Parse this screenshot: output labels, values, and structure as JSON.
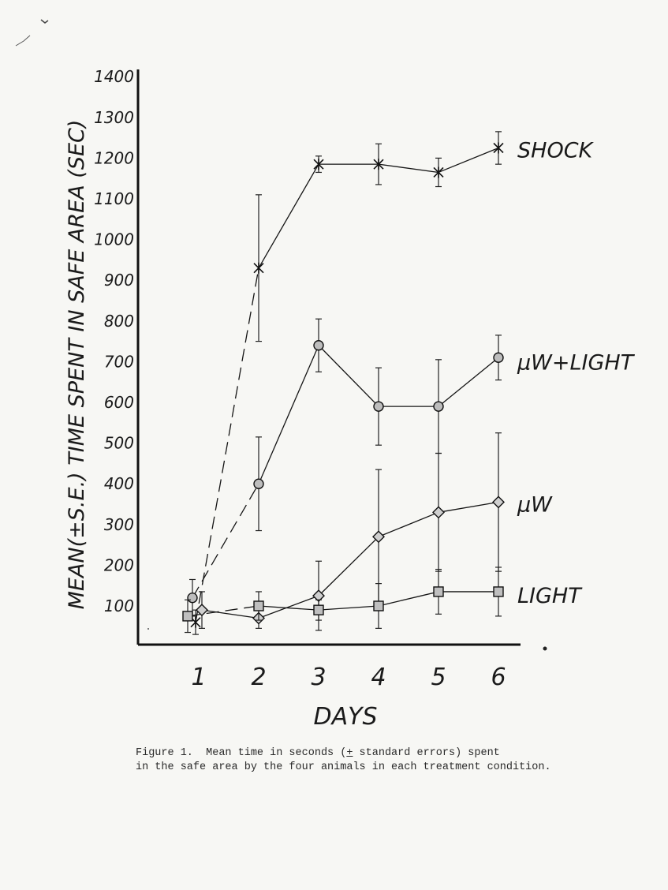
{
  "chart_data": {
    "type": "line",
    "ylabel": "MEAN(±S.E.) TIME SPENT IN SAFE AREA (SEC)",
    "xlabel": "DAYS",
    "x": [
      1,
      2,
      3,
      4,
      5,
      6
    ],
    "x_tick_labels": [
      "1",
      "2",
      "3",
      "4",
      "5",
      "6"
    ],
    "y_ticks": [
      100,
      200,
      300,
      400,
      500,
      600,
      700,
      800,
      900,
      1000,
      1100,
      1200,
      1300,
      1400
    ],
    "y_tick_labels": [
      "100",
      "200",
      "300",
      "400",
      "500",
      "600",
      "700",
      "800",
      "900",
      "1000",
      "1100",
      "1200",
      "1300",
      "1400"
    ],
    "ylim": [
      0,
      1400
    ],
    "xlim": [
      0.2,
      6.8
    ],
    "grid": false,
    "legend_placement": "labels at right end of each series",
    "series": [
      {
        "name": "SHOCK",
        "marker": "x",
        "values": [
          60,
          930,
          1185,
          1185,
          1165,
          1225
        ],
        "errors": [
          30,
          180,
          20,
          50,
          35,
          40
        ],
        "dashed_first_segment": true
      },
      {
        "name": "μW+LIGHT",
        "marker": "circle",
        "values": [
          120,
          400,
          740,
          590,
          590,
          710
        ],
        "errors": [
          45,
          115,
          65,
          95,
          115,
          55
        ],
        "dashed_first_segment": true
      },
      {
        "name": "μW",
        "marker": "diamond",
        "values": [
          90,
          70,
          125,
          270,
          330,
          355
        ],
        "errors": [
          45,
          25,
          85,
          165,
          145,
          170
        ],
        "dashed_first_segment": false
      },
      {
        "name": "LIGHT",
        "marker": "square",
        "values": [
          75,
          100,
          90,
          100,
          135,
          135
        ],
        "errors": [
          40,
          35,
          25,
          55,
          55,
          60
        ],
        "dashed_first_segment": true
      }
    ]
  },
  "caption": {
    "line1_a": "Figure 1.  Mean time in seconds (",
    "line1_pm": "+",
    "line1_b": " standard errors) spent",
    "line2": "in the safe area by the four animals in each treatment condition."
  }
}
